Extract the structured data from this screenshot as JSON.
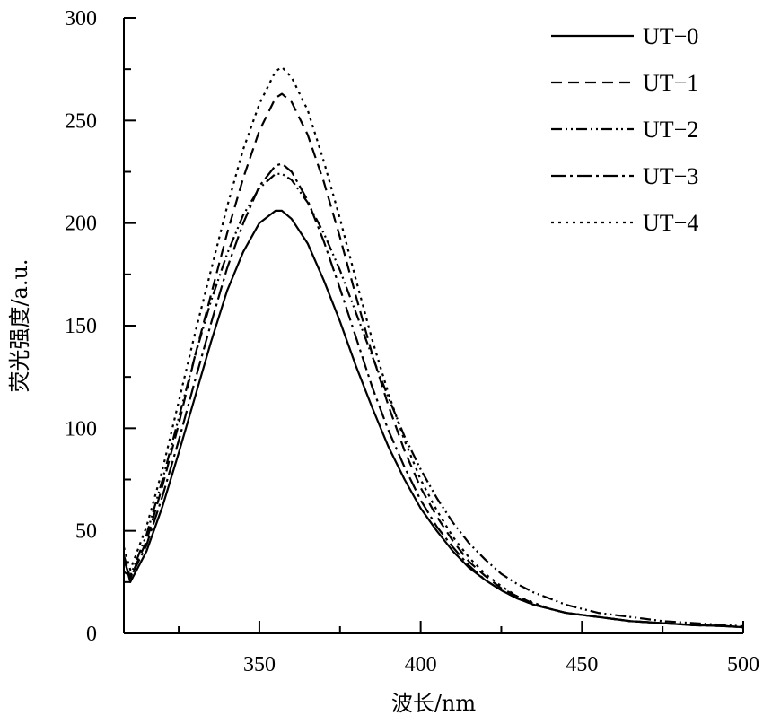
{
  "chart_data": {
    "type": "line",
    "title": "",
    "xlabel": "波长/nm",
    "ylabel": "荧光强度/a.u.",
    "xlim": [
      308,
      500
    ],
    "ylim": [
      0,
      300
    ],
    "x_ticks": [
      350,
      400,
      450,
      500
    ],
    "x_tick_labels": [
      "350",
      "400",
      "450",
      "500"
    ],
    "y_ticks": [
      0,
      50,
      100,
      150,
      200,
      250,
      300
    ],
    "y_tick_labels": [
      "0",
      "50",
      "100",
      "150",
      "200",
      "250",
      "300"
    ],
    "grid": false,
    "legend_position": "top-right",
    "x": [
      308,
      310,
      315,
      320,
      325,
      330,
      335,
      340,
      345,
      350,
      355,
      357,
      360,
      365,
      370,
      375,
      380,
      385,
      390,
      395,
      400,
      405,
      410,
      415,
      420,
      425,
      430,
      435,
      440,
      445,
      450,
      455,
      460,
      465,
      470,
      475,
      480,
      485,
      490,
      495,
      500
    ],
    "series": [
      {
        "name": "UT−0",
        "dash": "",
        "values": [
          37,
          25,
          40,
          62,
          88,
          115,
          142,
          167,
          186,
          200,
          206,
          206,
          202,
          190,
          172,
          152,
          130,
          110,
          91,
          75,
          61,
          50,
          40,
          32,
          26,
          21,
          17,
          14,
          12,
          10,
          9,
          8,
          7,
          6,
          5.5,
          5,
          4.5,
          4,
          3.8,
          3.5,
          3
        ]
      },
      {
        "name": "UT−1",
        "dash": "12,7",
        "values": [
          38,
          27,
          45,
          72,
          102,
          135,
          165,
          195,
          222,
          245,
          261,
          263,
          259,
          243,
          220,
          193,
          164,
          136,
          111,
          89,
          71,
          57,
          45,
          35,
          28,
          22,
          18,
          14.5,
          12,
          10,
          9,
          8,
          7,
          6,
          5.5,
          5,
          4.5,
          4,
          3.8,
          3.5,
          3
        ]
      },
      {
        "name": "UT−2",
        "dash": "12,4,2,4,2,4",
        "values": [
          30,
          28,
          48,
          75,
          105,
          135,
          162,
          185,
          204,
          217,
          224,
          224,
          221,
          210,
          195,
          177,
          156,
          135,
          115,
          96,
          80,
          66,
          54,
          44,
          36,
          29,
          24,
          20,
          17,
          14,
          12,
          10,
          9,
          8,
          7,
          6,
          5.5,
          5,
          4.5,
          4,
          3.5
        ]
      },
      {
        "name": "UT−3",
        "dash": "16,5,3,5",
        "values": [
          36,
          27,
          43,
          67,
          94,
          123,
          151,
          178,
          200,
          218,
          228,
          229,
          225,
          211,
          191,
          168,
          144,
          120,
          99,
          81,
          65,
          52,
          42,
          33,
          26,
          21,
          17,
          14,
          12,
          10,
          9,
          8,
          7,
          6,
          5.5,
          5,
          4.5,
          4,
          3.8,
          3.5,
          3
        ]
      },
      {
        "name": "UT−4",
        "dash": "3,5",
        "values": [
          42,
          31,
          52,
          80,
          113,
          146,
          177,
          208,
          236,
          258,
          274,
          276,
          271,
          255,
          230,
          202,
          172,
          143,
          117,
          94,
          75,
          60,
          47,
          37,
          29,
          23,
          18,
          15,
          12,
          10,
          9,
          8,
          7,
          6,
          5.5,
          5,
          4.5,
          4,
          3.8,
          3.5,
          3
        ]
      }
    ]
  }
}
